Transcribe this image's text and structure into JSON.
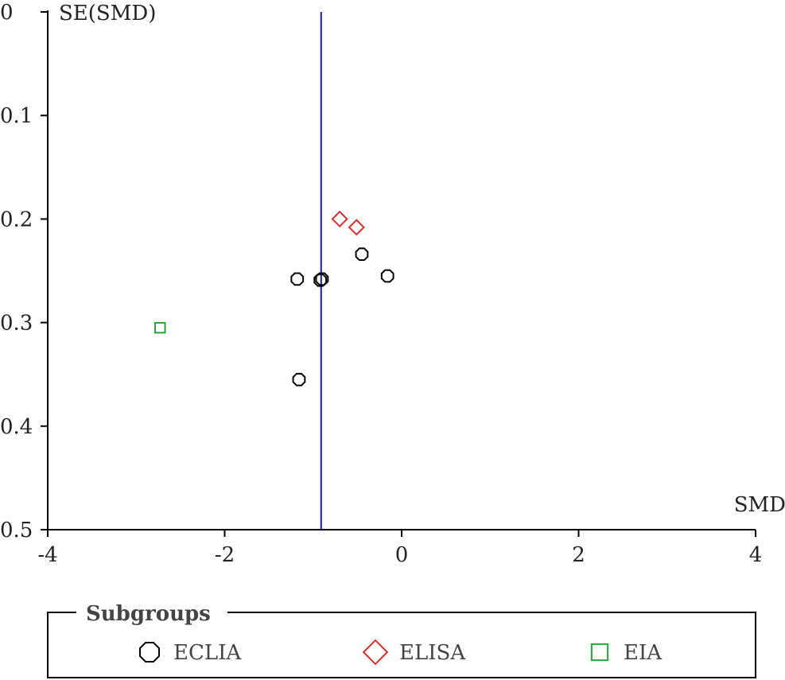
{
  "chart_data": {
    "type": "scatter",
    "title": "",
    "xlabel": "SMD",
    "ylabel": "SE(SMD)",
    "xlim": [
      -4,
      4
    ],
    "ylim": [
      0,
      0.5
    ],
    "y_inverted": true,
    "x_ticks": [
      "-4",
      "-2",
      "0",
      "2",
      "4"
    ],
    "x_tick_values": [
      -4,
      -2,
      0,
      2,
      4
    ],
    "y_ticks": [
      "0",
      "0.1",
      "0.2",
      "0.3",
      "0.4",
      "0.5"
    ],
    "y_tick_values": [
      0,
      0.1,
      0.2,
      0.3,
      0.4,
      0.5
    ],
    "reference_line_x": -0.91,
    "reference_line_color": "#1a237e",
    "legend": {
      "title": "Subgroups",
      "position": "bottom",
      "entries": [
        "ECLIA",
        "ELISA",
        "EIA"
      ]
    },
    "series": [
      {
        "name": "ECLIA",
        "marker": "octagon",
        "color": "#000000",
        "points": [
          {
            "x": -1.18,
            "y": 0.258
          },
          {
            "x": -0.92,
            "y": 0.259
          },
          {
            "x": -0.9,
            "y": 0.258
          },
          {
            "x": -0.45,
            "y": 0.234
          },
          {
            "x": -0.16,
            "y": 0.255
          },
          {
            "x": -1.16,
            "y": 0.355
          }
        ]
      },
      {
        "name": "ELISA",
        "marker": "diamond",
        "color": "#d32f2f",
        "points": [
          {
            "x": -0.7,
            "y": 0.2
          },
          {
            "x": -0.51,
            "y": 0.208
          }
        ]
      },
      {
        "name": "EIA",
        "marker": "square",
        "color": "#2e9e3e",
        "points": [
          {
            "x": -2.73,
            "y": 0.305
          }
        ]
      }
    ]
  }
}
